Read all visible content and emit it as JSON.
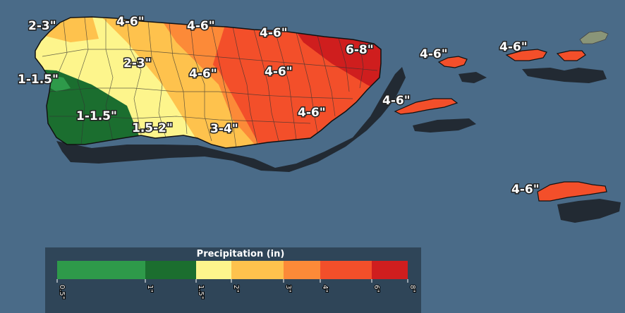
{
  "map_labels": {
    "nw_corner": "2-3\"",
    "west_coast": "1-1.5\"",
    "north_center_west": "4-6\"",
    "north_center": "4-6\"",
    "northeast": "4-6\"",
    "far_northeast": "6-8\"",
    "culebra": "4-6\"",
    "virgin_islands_north": "4-6\"",
    "center_west": "2-3\"",
    "center": "4-6\"",
    "center_east": "4-6\"",
    "vieques": "4-6\"",
    "southwest": "1-1.5\"",
    "south_center_west": "1.5-2\"",
    "south_center": "3-4\"",
    "southeast": "4-6\"",
    "st_croix": "4-6\""
  },
  "legend": {
    "title": "Precipitation (in)",
    "colors": [
      "#2e9a4a",
      "#1b6e2f",
      "#fdf58c",
      "#fec24d",
      "#fc8a38",
      "#f34f2a",
      "#cf1e1e"
    ],
    "tick_labels": [
      "0.5\"",
      "1\"",
      "1.5\"",
      "2\"",
      "3\"",
      "4\"",
      "6\"",
      "8\""
    ]
  },
  "colors": {
    "ocean": "#4a6b88",
    "land_shadow": "#222a33"
  }
}
